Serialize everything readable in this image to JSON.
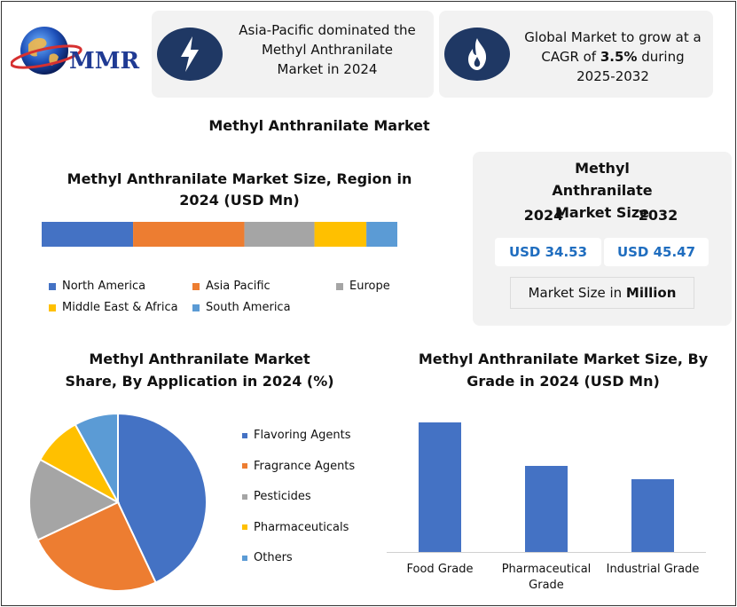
{
  "logo": {
    "text": "MMR"
  },
  "headlines": [
    {
      "text": "Asia-Pacific dominated the Methyl Anthranilate Market in 2024",
      "icon": "lightning-icon"
    },
    {
      "text_before": "Global Market to grow at a CAGR of ",
      "text_bold": "3.5%",
      "text_after": " during 2025-2032",
      "icon": "flame-icon"
    }
  ],
  "main_title": "Methyl Anthranilate Market",
  "size_panel": {
    "title": "Methyl Anthranilate Market Size",
    "year_start": "2024",
    "year_end": "2032",
    "value_start": "USD 34.53",
    "value_end": "USD 45.47",
    "note_prefix": "Market Size in ",
    "note_bold": "Million"
  },
  "colors": {
    "blue": "#4472c4",
    "orange": "#ed7d31",
    "gray": "#a5a5a5",
    "yellow": "#ffc000",
    "lightblue": "#5b9bd5",
    "navy": "#1f3864"
  },
  "chart_data": [
    {
      "type": "bar",
      "subtype": "100% stacked horizontal",
      "title": "Methyl Anthranilate Market Size, Region in 2024 (USD Mn)",
      "categories": [
        "North America",
        "Asia Pacific",
        "Europe",
        "Middle East & Africa",
        "South America"
      ],
      "values": [
        25.7,
        31.3,
        19.7,
        14.6,
        8.7
      ],
      "colors": [
        "#4472c4",
        "#ed7d31",
        "#a5a5a5",
        "#ffc000",
        "#5b9bd5"
      ],
      "legend_position": "bottom"
    },
    {
      "type": "pie",
      "title": "Methyl Anthranilate Market Share, By Application in 2024 (%)",
      "categories": [
        "Flavoring Agents",
        "Fragrance Agents",
        "Pesticides",
        "Pharmaceuticals",
        "Others"
      ],
      "values": [
        43,
        25,
        15,
        9,
        8
      ],
      "colors": [
        "#4472c4",
        "#ed7d31",
        "#a5a5a5",
        "#ffc000",
        "#5b9bd5"
      ],
      "legend_position": "right"
    },
    {
      "type": "bar",
      "title": "Methyl Anthranilate Market Size, By Grade in 2024 (USD Mn)",
      "categories": [
        "Food Grade",
        "Pharmaceutical Grade",
        "Industrial Grade"
      ],
      "values": [
        14.6,
        9.7,
        8.2
      ],
      "ylim": [
        0,
        16
      ],
      "color": "#4472c4",
      "grid": false
    }
  ]
}
